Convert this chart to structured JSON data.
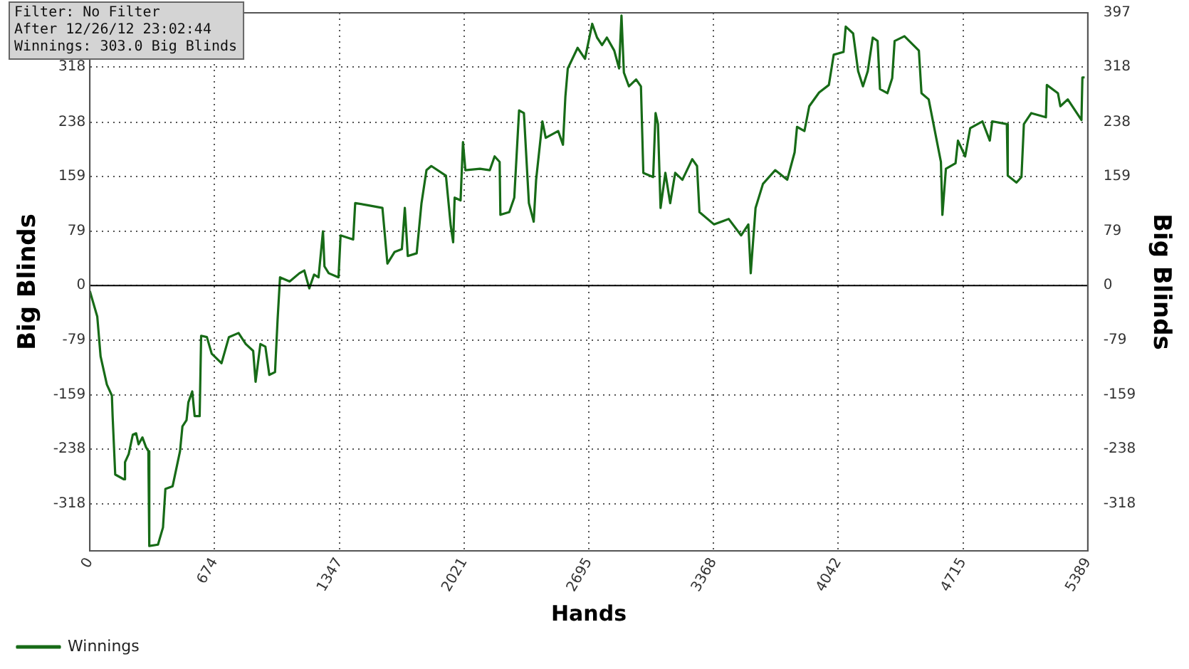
{
  "chart_data": {
    "type": "line",
    "xlabel": "Hands",
    "ylabel": "Big Blinds",
    "y2label": "Big Blinds",
    "annotations": [
      "Filter: No Filter",
      "After 12/26/12 23:02:44",
      "Winnings: 303.0 Big Blinds"
    ],
    "xlim": [
      0,
      5389
    ],
    "xticks": [
      0,
      674,
      1347,
      2021,
      2695,
      3368,
      4042,
      4715,
      5389
    ],
    "ylim": [
      -386,
      397
    ],
    "yticks": [
      -318,
      -238,
      -159,
      -79,
      0,
      79,
      159,
      238,
      318
    ],
    "y2lim": [
      -386,
      397
    ],
    "y2ticks": [
      -318,
      -238,
      -159,
      -79,
      0,
      79,
      159,
      238,
      318,
      397
    ],
    "grid": true,
    "legend": "bottom left",
    "ref_lines": [
      {
        "axis": "y",
        "value": 0,
        "color": "#000000"
      }
    ],
    "series": [
      {
        "name": "Winnings",
        "color": "#176b17",
        "x": [
          0,
          40,
          58,
          92,
          119,
          123,
          137,
          184,
          190,
          210,
          232,
          250,
          263,
          284,
          303,
          316,
          321,
          368,
          395,
          408,
          447,
          487,
          500,
          522,
          532,
          553,
          566,
          593,
          601,
          632,
          658,
          711,
          751,
          803,
          842,
          882,
          895,
          921,
          948,
          969,
          1000,
          1014,
          1027,
          1079,
          1132,
          1158,
          1185,
          1211,
          1235,
          1259,
          1267,
          1290,
          1343,
          1354,
          1422,
          1433,
          1501,
          1580,
          1607,
          1646,
          1685,
          1701,
          1717,
          1765,
          1791,
          1818,
          1844,
          1923,
          1949,
          1962,
          1970,
          2002,
          2015,
          2028,
          2107,
          2160,
          2186,
          2213,
          2217,
          2265,
          2292,
          2318,
          2344,
          2371,
          2397,
          2410,
          2444,
          2462,
          2529,
          2555,
          2568,
          2581,
          2634,
          2674,
          2713,
          2739,
          2766,
          2792,
          2832,
          2858,
          2871,
          2884,
          2911,
          2950,
          2976,
          2989,
          3042,
          3055,
          3068,
          3082,
          3108,
          3134,
          3161,
          3200,
          3253,
          3279,
          3292,
          3371,
          3450,
          3517,
          3556,
          3569,
          3595,
          3635,
          3701,
          3766,
          3806,
          3819,
          3859,
          3885,
          3938,
          3991,
          4017,
          4070,
          4082,
          4122,
          4149,
          4175,
          4201,
          4228,
          4254,
          4267,
          4307,
          4333,
          4346,
          4399,
          4477,
          4491,
          4530,
          4556,
          4596,
          4604,
          4623,
          4675,
          4688,
          4727,
          4754,
          4820,
          4860,
          4873,
          4952,
          4957,
          5004,
          5031,
          5044,
          5084,
          5163,
          5168,
          5228,
          5241,
          5281,
          5355,
          5360,
          5372
        ],
        "values": [
          -8,
          -45,
          -103,
          -144,
          -160,
          -190,
          -275,
          -282,
          -257,
          -245,
          -217,
          -215,
          -231,
          -221,
          -235,
          -241,
          -379,
          -377,
          -352,
          -296,
          -292,
          -241,
          -205,
          -196,
          -170,
          -154,
          -190,
          -190,
          -73,
          -75,
          -99,
          -113,
          -75,
          -69,
          -85,
          -95,
          -140,
          -85,
          -89,
          -130,
          -126,
          -49,
          12,
          6,
          18,
          22,
          -4,
          16,
          12,
          79,
          28,
          18,
          12,
          73,
          67,
          120,
          117,
          113,
          32,
          49,
          53,
          113,
          43,
          47,
          120,
          168,
          174,
          160,
          87,
          63,
          128,
          124,
          209,
          168,
          170,
          168,
          188,
          180,
          103,
          107,
          128,
          255,
          251,
          120,
          93,
          154,
          239,
          215,
          225,
          205,
          275,
          316,
          346,
          330,
          381,
          361,
          350,
          361,
          342,
          316,
          393,
          310,
          290,
          300,
          290,
          164,
          158,
          251,
          235,
          113,
          164,
          120,
          164,
          154,
          184,
          174,
          107,
          89,
          97,
          73,
          89,
          18,
          113,
          148,
          168,
          154,
          194,
          231,
          225,
          261,
          281,
          292,
          336,
          340,
          377,
          367,
          312,
          290,
          312,
          361,
          356,
          286,
          280,
          302,
          356,
          363,
          342,
          280,
          271,
          235,
          180,
          103,
          170,
          178,
          211,
          188,
          229,
          239,
          211,
          239,
          235,
          160,
          150,
          158,
          235,
          251,
          245,
          292,
          280,
          261,
          271,
          241,
          303,
          303
        ]
      }
    ]
  }
}
